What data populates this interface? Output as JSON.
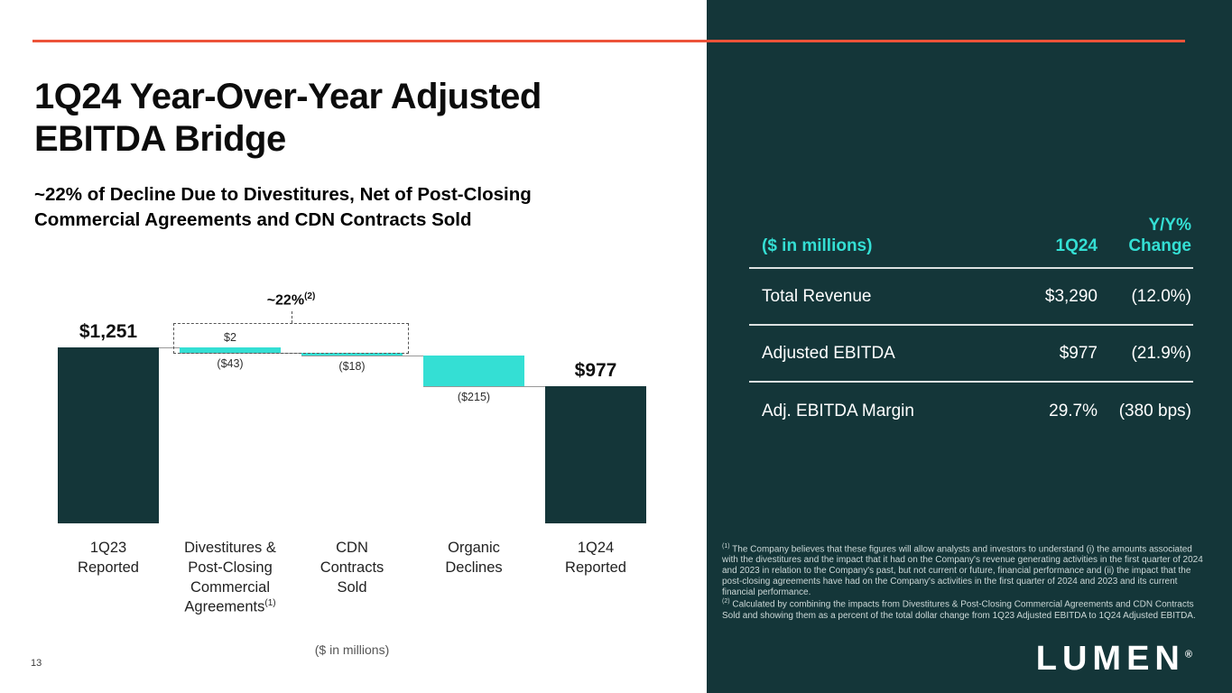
{
  "page": {
    "number": "13"
  },
  "header": {
    "title_line1": "1Q24 Year-Over-Year Adjusted",
    "title_line2": "EBITDA Bridge",
    "subtitle_line1": "~22% of Decline Due to Divestitures, Net of Post-Closing",
    "subtitle_line2": "Commercial Agreements and CDN Contracts Sold"
  },
  "colors": {
    "dark_teal": "#143639",
    "cyan": "#34DFD4",
    "orange": "#EC5339"
  },
  "chart_data": {
    "type": "bar",
    "subtype": "waterfall",
    "units_note": "($ in millions)",
    "ylim": [
      0,
      1251
    ],
    "annotation": {
      "text": "~22%",
      "superscript": "(2)",
      "spans_bars": [
        2,
        3
      ]
    },
    "bars": [
      {
        "category_lines": [
          "1Q23",
          "Reported"
        ],
        "kind": "total",
        "start": 0,
        "end": 1251,
        "value_label": "$1,251"
      },
      {
        "category_lines": [
          "Divestitures &",
          "Post-Closing",
          "Commercial",
          "Agreements"
        ],
        "footnote_marker": "(1)",
        "kind": "delta",
        "start": 1251,
        "end": 1210,
        "net_change": -41,
        "above_label": "$2",
        "below_label": "($43)"
      },
      {
        "category_lines": [
          "CDN",
          "Contracts",
          "Sold"
        ],
        "kind": "delta",
        "start": 1210,
        "end": 1192,
        "net_change": -18,
        "below_label": "($18)"
      },
      {
        "category_lines": [
          "Organic",
          "Declines"
        ],
        "kind": "delta",
        "start": 1192,
        "end": 977,
        "net_change": -215,
        "below_label": "($215)"
      },
      {
        "category_lines": [
          "1Q24",
          "Reported"
        ],
        "kind": "total",
        "start": 0,
        "end": 977,
        "value_label": "$977"
      }
    ]
  },
  "table": {
    "headers": [
      "($ in millions)",
      "1Q24",
      "Y/Y% Change"
    ],
    "rows": [
      [
        "Total Revenue",
        "$3,290",
        "(12.0%)"
      ],
      [
        "Adjusted EBITDA",
        "$977",
        "(21.9%)"
      ],
      [
        "Adj. EBITDA Margin",
        "29.7%",
        "(380 bps)"
      ]
    ]
  },
  "footnotes": [
    {
      "marker": "(1)",
      "text": "The Company believes that these figures will allow analysts and investors to understand (i) the amounts associated with the divestitures and the impact that it had on the Company's revenue generating activities in the first quarter of 2024 and 2023 in relation to the Company's past, but not current or future, financial performance and (ii) the impact that the post-closing agreements have had on the Company's activities in the first quarter of 2024 and 2023 and its current financial performance."
    },
    {
      "marker": "(2)",
      "text": "Calculated by combining the impacts from Divestitures & Post-Closing Commercial Agreements and CDN Contracts Sold and showing them as a percent of the total dollar change from 1Q23 Adjusted EBITDA to 1Q24 Adjusted EBITDA."
    }
  ],
  "logo": {
    "text": "LUMEN",
    "registered": "®"
  }
}
